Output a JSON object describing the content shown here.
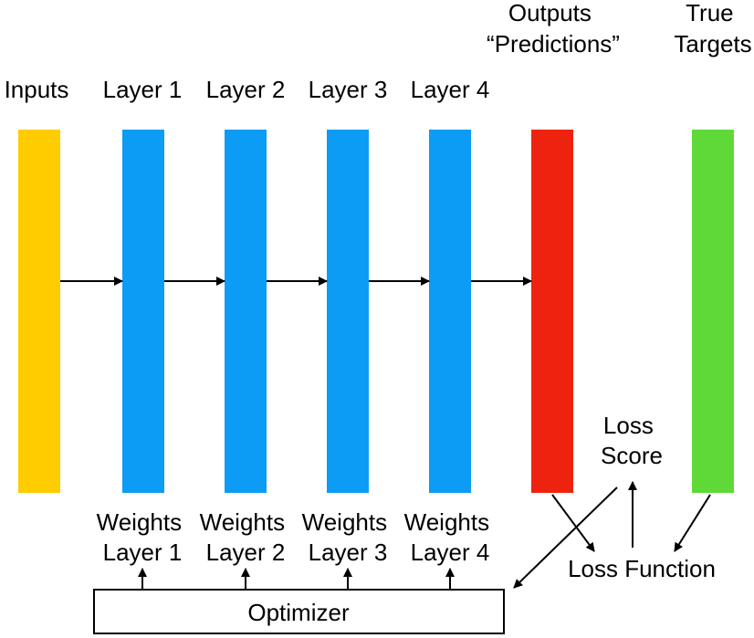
{
  "columns": [
    {
      "id": "inputs",
      "label_lines": [
        "Inputs"
      ],
      "color": "#FFCC00"
    },
    {
      "id": "layer1",
      "label_lines": [
        "Layer 1"
      ],
      "color": "#0C9CF6"
    },
    {
      "id": "layer2",
      "label_lines": [
        "Layer 2"
      ],
      "color": "#0C9CF6"
    },
    {
      "id": "layer3",
      "label_lines": [
        "Layer 3"
      ],
      "color": "#0C9CF6"
    },
    {
      "id": "layer4",
      "label_lines": [
        "Layer 4"
      ],
      "color": "#0C9CF6"
    },
    {
      "id": "outputs",
      "label_lines": [
        "Outputs",
        "“Predictions”"
      ],
      "color": "#EE230F"
    },
    {
      "id": "targets",
      "label_lines": [
        "True",
        "Targets"
      ],
      "color": "#5FD938"
    }
  ],
  "weights": [
    {
      "id": "weights1",
      "lines": [
        "Weights",
        "Layer 1"
      ]
    },
    {
      "id": "weights2",
      "lines": [
        "Weights",
        "Layer 2"
      ]
    },
    {
      "id": "weights3",
      "lines": [
        "Weights",
        "Layer 3"
      ]
    },
    {
      "id": "weights4",
      "lines": [
        "Weights",
        "Layer 4"
      ]
    }
  ],
  "optimizer": {
    "label": "Optimizer"
  },
  "loss_score": {
    "lines": [
      "Loss",
      "Score"
    ]
  },
  "loss_function": {
    "label": "Loss Function"
  }
}
